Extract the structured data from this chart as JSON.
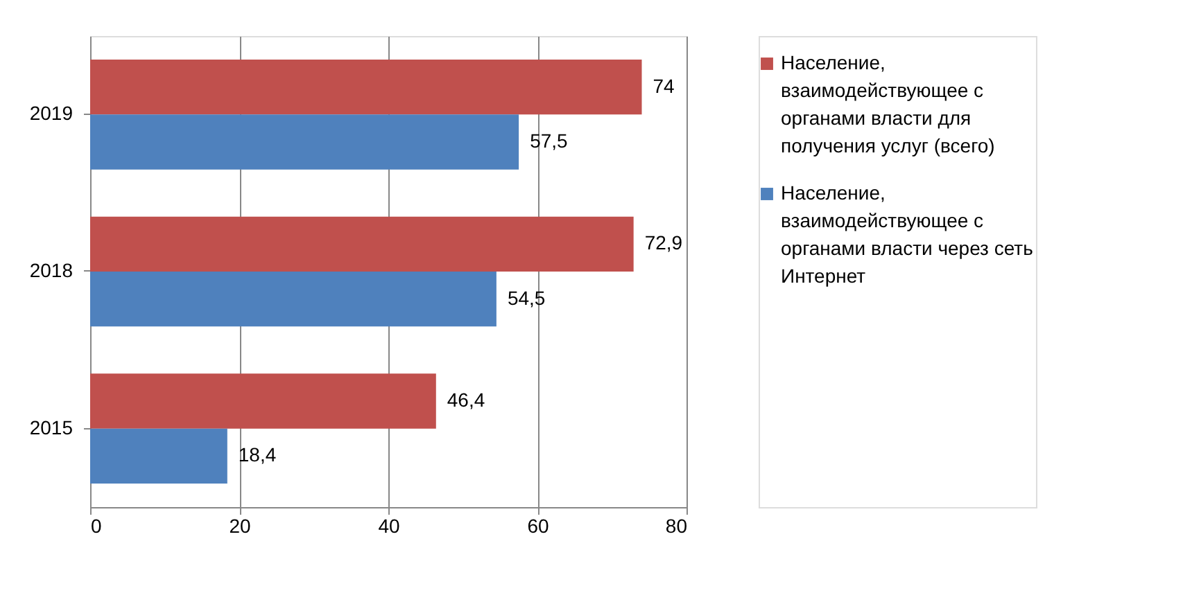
{
  "chart_data": {
    "type": "bar",
    "orientation": "horizontal",
    "categories": [
      "2019",
      "2018",
      "2015"
    ],
    "series": [
      {
        "name": "Население, взаимодействующее с органами власти для получения услуг (всего)",
        "color": "#c0504d",
        "values": [
          74,
          72.9,
          46.4
        ],
        "value_labels": [
          "74",
          "72,9",
          "46,4"
        ]
      },
      {
        "name": "Население, взаимодействующее с органами власти через сеть Интернет",
        "color": "#4f81bd",
        "values": [
          57.5,
          54.5,
          18.4
        ],
        "value_labels": [
          "57,5",
          "54,5",
          "18,4"
        ]
      }
    ],
    "xlim": [
      0,
      80
    ],
    "xticks": [
      0,
      20,
      40,
      60,
      80
    ],
    "grid": "x",
    "legend": "right"
  }
}
